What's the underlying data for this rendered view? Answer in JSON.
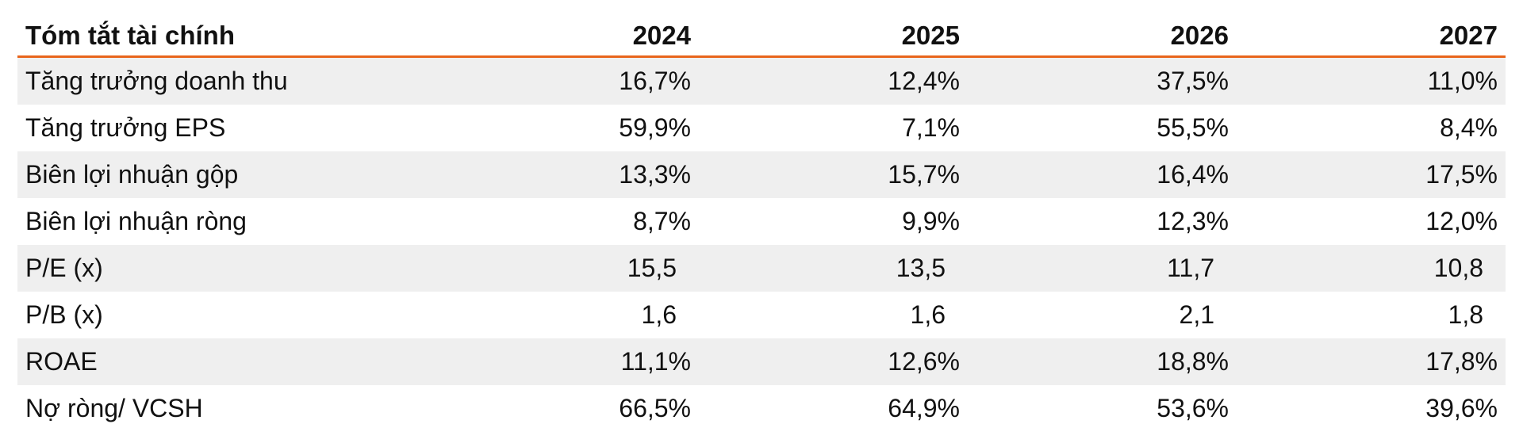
{
  "table": {
    "header": {
      "title": "Tóm tắt tài chính",
      "years": [
        "2024",
        "2025",
        "2026",
        "2027"
      ]
    },
    "rows": [
      {
        "label": "Tăng trưởng doanh thu",
        "values": [
          "16,7%",
          "12,4%",
          "37,5%",
          "11,0%"
        ]
      },
      {
        "label": "Tăng trưởng EPS",
        "values": [
          "59,9%",
          "7,1%",
          "55,5%",
          "8,4%"
        ]
      },
      {
        "label": "Biên lợi nhuận gộp",
        "values": [
          "13,3%",
          "15,7%",
          "16,4%",
          "17,5%"
        ]
      },
      {
        "label": "Biên lợi nhuận ròng",
        "values": [
          "8,7%",
          "9,9%",
          "12,3%",
          "12,0%"
        ]
      },
      {
        "label": "P/E (x)",
        "values": [
          "15,5",
          "13,5",
          "11,7",
          "10,8"
        ]
      },
      {
        "label": "P/B (x)",
        "values": [
          "1,6",
          "1,6",
          "2,1",
          "1,8"
        ]
      },
      {
        "label": "ROAE",
        "values": [
          "11,1%",
          "12,6%",
          "18,8%",
          "17,8%"
        ]
      },
      {
        "label": "Nợ ròng/ VCSH",
        "values": [
          "66,5%",
          "64,9%",
          "53,6%",
          "39,6%"
        ]
      }
    ]
  },
  "colors": {
    "accent": "#e8651c",
    "row_shade": "#efefef"
  }
}
